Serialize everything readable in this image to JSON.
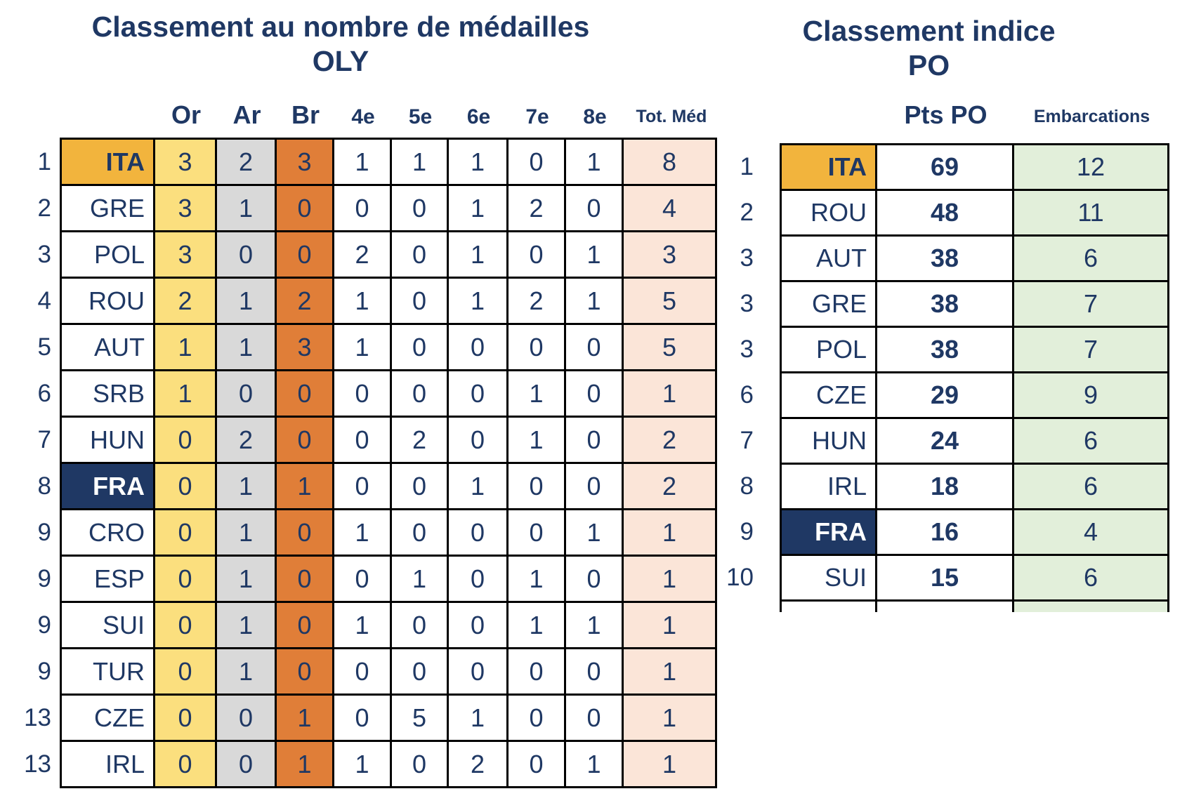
{
  "page": {
    "background": "#FFFFFF"
  },
  "colors": {
    "text_navy": "#1F3864",
    "highlight_gold": "#F2B43D",
    "gold_column": "#FBDF7E",
    "silver_column": "#D9D9D9",
    "bronze_column": "#E07E38",
    "total_column": "#FBE5D8",
    "embarcations_column": "#E2EFDA",
    "highlight_navy": "#1F3864",
    "border": "#000000"
  },
  "chart_data": [
    {
      "type": "table",
      "title": "Classement au nombre de médailles OLY",
      "columns": [
        "Or",
        "Ar",
        "Br",
        "4e",
        "5e",
        "6e",
        "7e",
        "8e",
        "Tot. Méd"
      ],
      "rows": [
        {
          "rank": "1",
          "country": "ITA",
          "hl": "gold",
          "values": [
            "3",
            "2",
            "3",
            "1",
            "1",
            "1",
            "0",
            "1",
            "8"
          ]
        },
        {
          "rank": "2",
          "country": "GRE",
          "values": [
            "3",
            "1",
            "0",
            "0",
            "0",
            "1",
            "2",
            "0",
            "4"
          ]
        },
        {
          "rank": "3",
          "country": "POL",
          "values": [
            "3",
            "0",
            "0",
            "2",
            "0",
            "1",
            "0",
            "1",
            "3"
          ]
        },
        {
          "rank": "4",
          "country": "ROU",
          "values": [
            "2",
            "1",
            "2",
            "1",
            "0",
            "1",
            "2",
            "1",
            "5"
          ]
        },
        {
          "rank": "5",
          "country": "AUT",
          "values": [
            "1",
            "1",
            "3",
            "1",
            "0",
            "0",
            "0",
            "0",
            "5"
          ]
        },
        {
          "rank": "6",
          "country": "SRB",
          "values": [
            "1",
            "0",
            "0",
            "0",
            "0",
            "0",
            "1",
            "0",
            "1"
          ]
        },
        {
          "rank": "7",
          "country": "HUN",
          "values": [
            "0",
            "2",
            "0",
            "0",
            "2",
            "0",
            "1",
            "0",
            "2"
          ]
        },
        {
          "rank": "8",
          "country": "FRA",
          "hl": "navy",
          "values": [
            "0",
            "1",
            "1",
            "0",
            "0",
            "1",
            "0",
            "0",
            "2"
          ]
        },
        {
          "rank": "9",
          "country": "CRO",
          "values": [
            "0",
            "1",
            "0",
            "1",
            "0",
            "0",
            "0",
            "1",
            "1"
          ]
        },
        {
          "rank": "9",
          "country": "ESP",
          "values": [
            "0",
            "1",
            "0",
            "0",
            "1",
            "0",
            "1",
            "0",
            "1"
          ]
        },
        {
          "rank": "9",
          "country": "SUI",
          "values": [
            "0",
            "1",
            "0",
            "1",
            "0",
            "0",
            "1",
            "1",
            "1"
          ]
        },
        {
          "rank": "9",
          "country": "TUR",
          "values": [
            "0",
            "1",
            "0",
            "0",
            "0",
            "0",
            "0",
            "0",
            "1"
          ]
        },
        {
          "rank": "13",
          "country": "CZE",
          "values": [
            "0",
            "0",
            "1",
            "0",
            "5",
            "1",
            "0",
            "0",
            "1"
          ]
        },
        {
          "rank": "13",
          "country": "IRL",
          "values": [
            "0",
            "0",
            "1",
            "1",
            "0",
            "2",
            "0",
            "1",
            "1"
          ]
        }
      ]
    },
    {
      "type": "table",
      "title": "Classement indice PO",
      "columns": [
        "Pts PO",
        "Embarcations"
      ],
      "rows": [
        {
          "rank": "1",
          "country": "ITA",
          "hl": "gold",
          "pts": "69",
          "emb": "12"
        },
        {
          "rank": "2",
          "country": "ROU",
          "pts": "48",
          "emb": "11"
        },
        {
          "rank": "3",
          "country": "AUT",
          "pts": "38",
          "emb": "6"
        },
        {
          "rank": "3",
          "country": "GRE",
          "pts": "38",
          "emb": "7"
        },
        {
          "rank": "3",
          "country": "POL",
          "pts": "38",
          "emb": "7"
        },
        {
          "rank": "6",
          "country": "CZE",
          "pts": "29",
          "emb": "9"
        },
        {
          "rank": "7",
          "country": "HUN",
          "pts": "24",
          "emb": "6"
        },
        {
          "rank": "8",
          "country": "IRL",
          "pts": "18",
          "emb": "6"
        },
        {
          "rank": "9",
          "country": "FRA",
          "hl": "navy",
          "pts": "16",
          "emb": "4"
        },
        {
          "rank": "10",
          "country": "SUI",
          "pts": "15",
          "emb": "6"
        }
      ]
    }
  ]
}
